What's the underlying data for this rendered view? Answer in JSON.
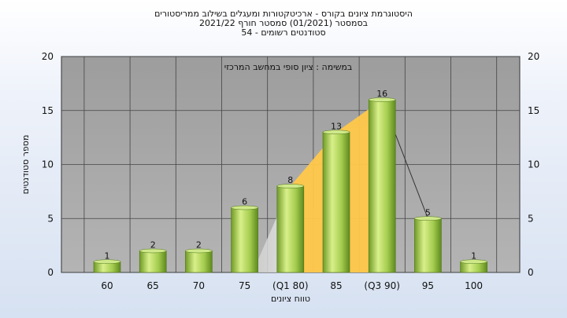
{
  "titles": [
    "היסטוגרמת ציונים בקורס - ארכיטקטורות ומעגלים בשילוב ממריסטורים",
    "בסמסטר   (01/2021)  סמסטר חורף  2021/22",
    "סטודנטים רשומים - 54"
  ],
  "chart_data": {
    "type": "bar",
    "title": "היסטוגרמת ציונים בקורס - ארכיטקטורות ומעגלים בשילוב ממריסטורים",
    "subtitle": "בסמסטר   (01/2021)  סמסטר חורף  2021/22 — סטודנטים רשומים - 54",
    "categories": [
      "60",
      "65",
      "70",
      "75",
      "(Q1 80)",
      "85",
      "(Q3 90)",
      "95",
      "100"
    ],
    "values": [
      1,
      2,
      2,
      6,
      8,
      13,
      16,
      5,
      1
    ],
    "xlabel": "טווח ציונים",
    "ylabel": "מספר סטודנטים",
    "ylim": [
      0,
      20
    ],
    "yticks": [
      0,
      5,
      10,
      15,
      20
    ],
    "grid": true,
    "annotation": "במשימה : ציון סופי במחשב המרכזי",
    "colors": {
      "plot_bg": "#a9a9a9",
      "bar_light": "#d9f08a",
      "bar_mid": "#9fc94a",
      "bar_dark": "#5e8a1e",
      "quartile_fill": "#ffc84a",
      "grid": "#444444"
    }
  }
}
